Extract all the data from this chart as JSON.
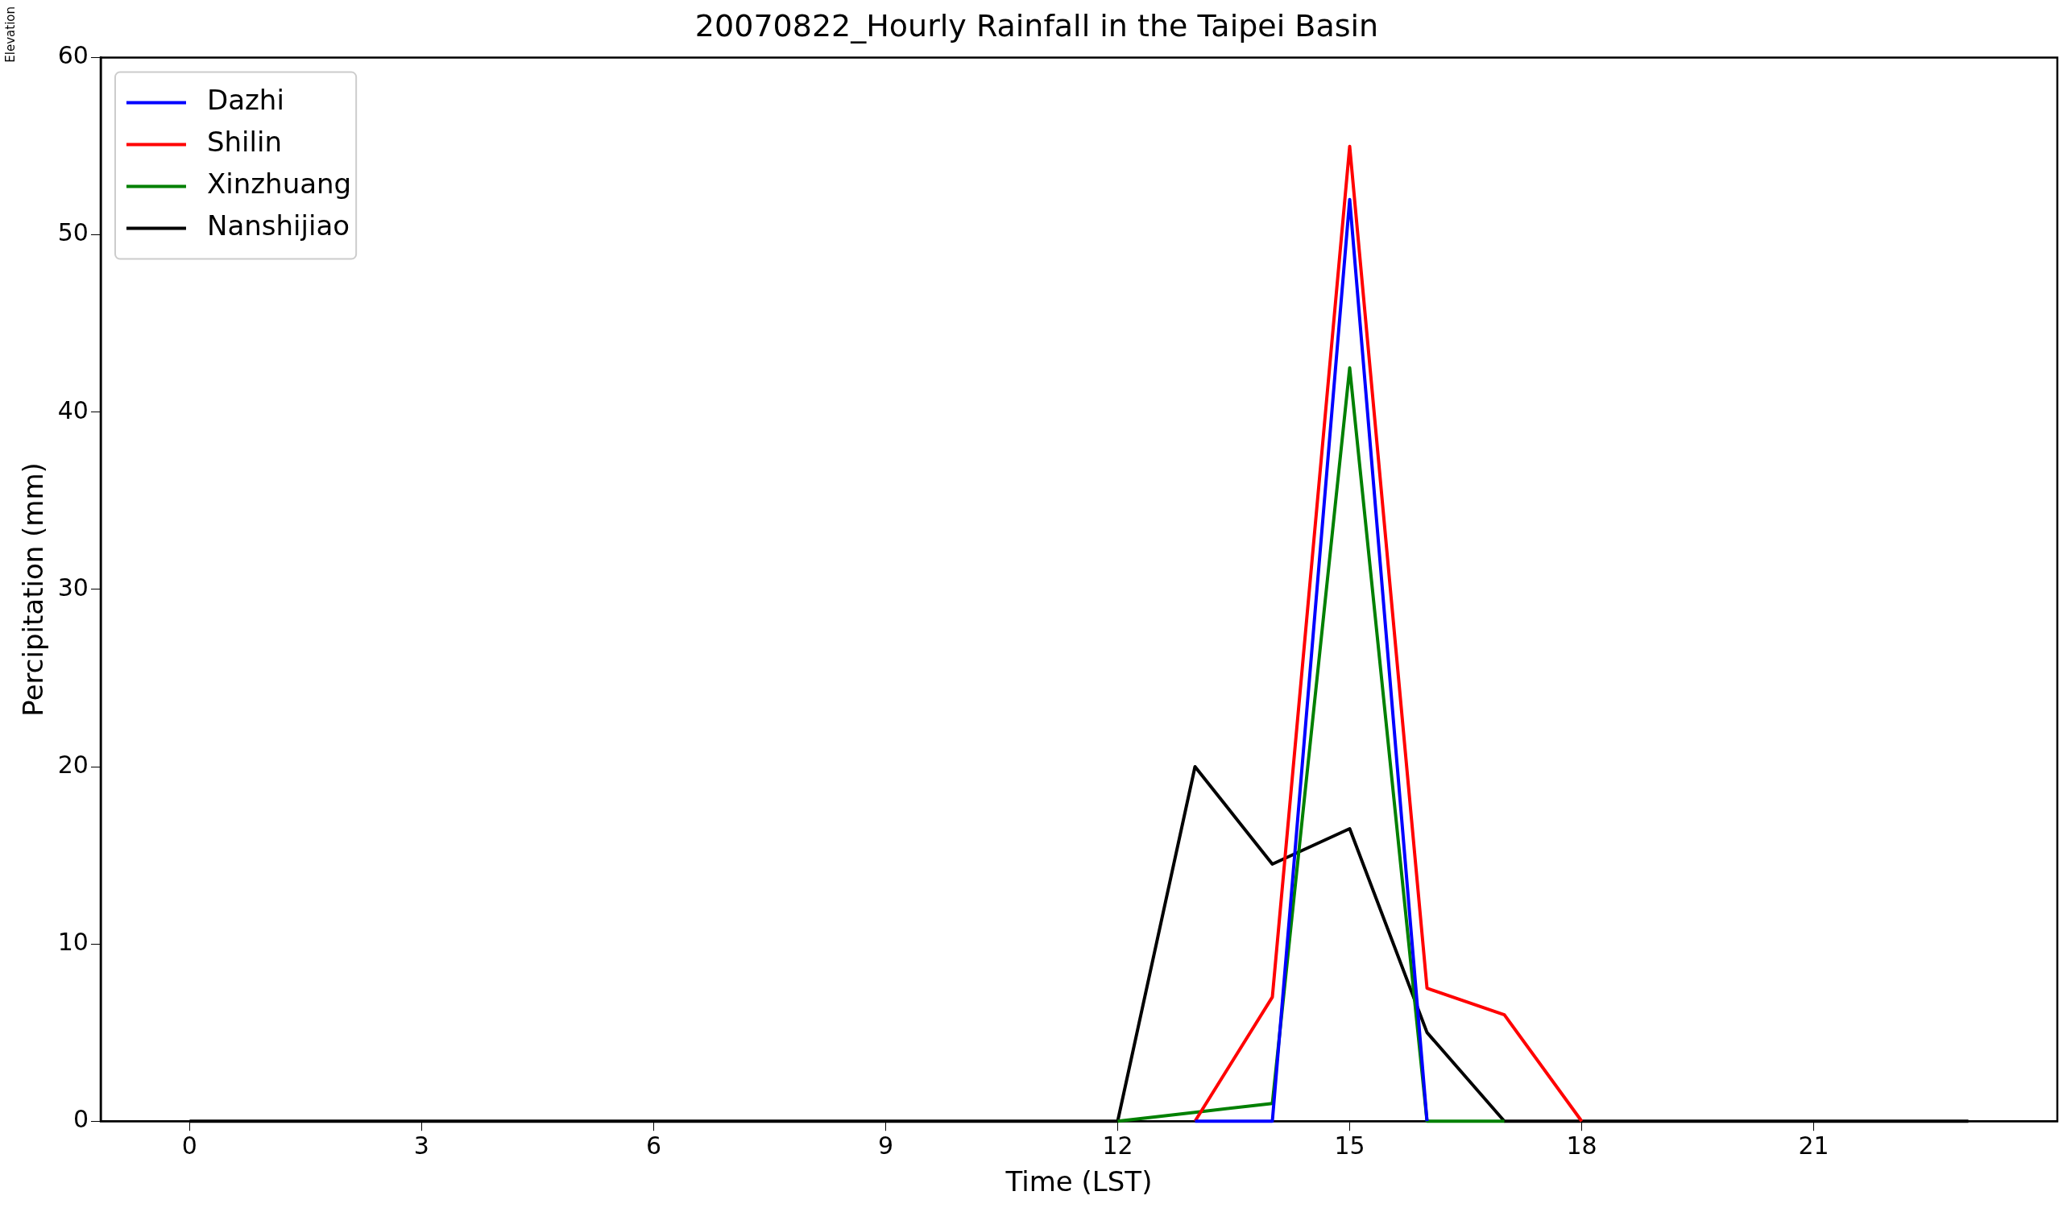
{
  "chart_data": {
    "type": "line",
    "title": "20070822_Hourly Rainfall in the Taipei Basin",
    "xlabel": "Time (LST)",
    "ylabel": "Percipitation (mm)",
    "annotations": [
      "Elevation"
    ],
    "x": [
      0,
      1,
      2,
      3,
      4,
      5,
      6,
      7,
      8,
      9,
      10,
      11,
      12,
      13,
      14,
      15,
      16,
      17,
      18,
      19,
      20,
      21,
      22,
      23
    ],
    "series": [
      {
        "name": "Dazhi",
        "color": "#0000ff",
        "values": [
          null,
          null,
          null,
          null,
          null,
          null,
          null,
          null,
          null,
          null,
          null,
          null,
          null,
          0,
          0,
          52,
          0,
          null,
          null,
          null,
          null,
          null,
          null,
          null
        ]
      },
      {
        "name": "Shilin",
        "color": "#ff0000",
        "values": [
          null,
          null,
          null,
          null,
          null,
          null,
          null,
          null,
          null,
          null,
          null,
          null,
          null,
          0,
          7,
          55,
          7.5,
          6,
          0,
          null,
          null,
          null,
          null,
          null
        ]
      },
      {
        "name": "Xinzhuang",
        "color": "#008000",
        "values": [
          null,
          null,
          null,
          null,
          null,
          null,
          null,
          null,
          null,
          null,
          null,
          null,
          0,
          0.5,
          1,
          42.5,
          0,
          0,
          null,
          null,
          null,
          null,
          null,
          null
        ]
      },
      {
        "name": "Nanshijiao",
        "color": "#000000",
        "values": [
          0,
          0,
          0,
          0,
          0,
          0,
          0,
          0,
          0,
          0,
          0,
          0,
          0,
          20,
          14.5,
          16.5,
          5,
          0,
          0,
          0,
          0,
          0,
          0,
          0
        ]
      }
    ],
    "xlim": [
      -1.15,
      24.15
    ],
    "xticks": [
      0,
      3,
      6,
      9,
      12,
      15,
      18,
      21
    ],
    "ylim": [
      0,
      60
    ],
    "yticks": [
      0,
      10,
      20,
      30,
      40,
      50,
      60
    ],
    "grid": false,
    "legend": "top left",
    "marker": "none",
    "line_style": "solid"
  }
}
